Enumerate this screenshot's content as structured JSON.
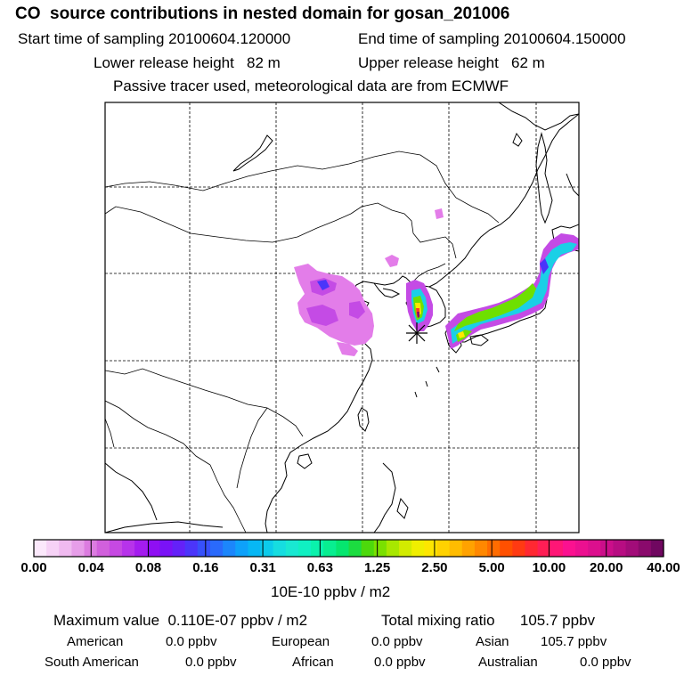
{
  "header": {
    "title": "CO  source contributions in nested domain for gosan_201006",
    "start_label": "Start time of sampling 20100604.120000",
    "end_label": "End time of sampling 20100604.150000",
    "lower_label": "Lower release height   82 m",
    "upper_label": "Upper release height   62 m",
    "note": "Passive tracer used, meteorological data are from ECMWF"
  },
  "colorbar": {
    "tick_labels": [
      "0.00",
      "0.04",
      "0.08",
      "0.16",
      "0.31",
      "0.63",
      "1.25",
      "2.50",
      "5.00",
      "10.00",
      "20.00",
      "40.00"
    ],
    "units": "10E-10 ppbv / m2",
    "colors": [
      "#fbe8fb",
      "#f6d2f6",
      "#f0baf0",
      "#e79ee9",
      "#dc7ce0",
      "#d160dc",
      "#c649e2",
      "#b733ea",
      "#a41cef",
      "#8f0ff3",
      "#7a12f6",
      "#6421f8",
      "#4b35fa",
      "#3750fb",
      "#2a6afb",
      "#1c86fb",
      "#0ea1fa",
      "#07b7f5",
      "#0ccbeb",
      "#16dde0",
      "#19e8d2",
      "#10f0c2",
      "#0af2ac",
      "#08ee90",
      "#05e66f",
      "#1cdc40",
      "#4dd90c",
      "#7ae000",
      "#a8e700",
      "#d2eb00",
      "#f0ee00",
      "#fde600",
      "#ffd200",
      "#ffbc00",
      "#ffa200",
      "#ff8800",
      "#ff6c00",
      "#ff5000",
      "#ff3a12",
      "#ff2832",
      "#ff1e55",
      "#ff1676",
      "#fb1190",
      "#ec1090",
      "#dc0f8e",
      "#cb0e8a",
      "#b70d82",
      "#a20c79",
      "#8a0a6c",
      "#700760"
    ]
  },
  "stats": {
    "max_value": "Maximum value  0.110E-07 ppbv / m2",
    "total": "Total mixing ratio      105.7 ppbv",
    "american_label": "American",
    "american_value": "0.0 ppbv",
    "european_label": "European",
    "european_value": "0.0 ppbv",
    "asian_label": "Asian",
    "asian_value": "105.7 ppbv",
    "south_american_label": "South American",
    "south_american_value": "0.0 ppbv",
    "african_label": "African",
    "african_value": "0.0 ppbv",
    "australian_label": "Australian",
    "australian_value": "0.0 ppbv"
  },
  "map": {
    "receptor_marker": "asterisk-marker",
    "plume_colors": [
      "#e37de9",
      "#c44be5",
      "#1ad0e6",
      "#6ee000",
      "#ffe800",
      "#ff3c28",
      "#8a0a6c"
    ]
  }
}
